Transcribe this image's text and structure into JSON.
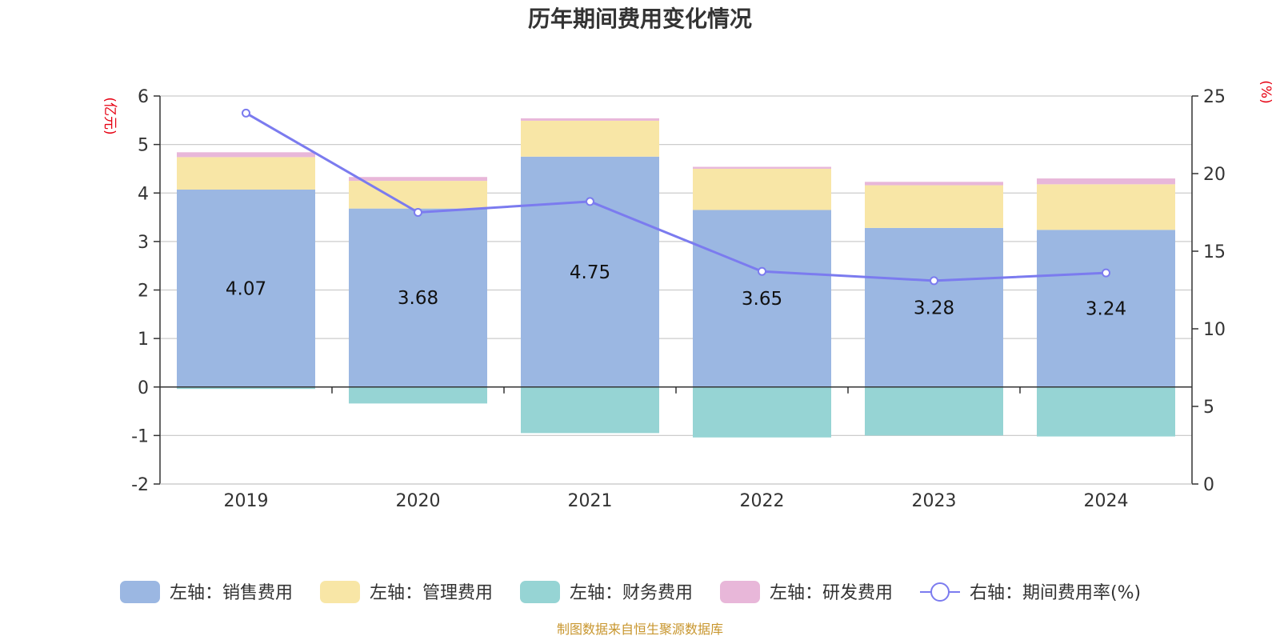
{
  "chart_data": {
    "type": "bar",
    "stacked": true,
    "title": "历年期间费用变化情况",
    "categories": [
      "2019",
      "2020",
      "2021",
      "2022",
      "2023",
      "2024"
    ],
    "left_axis": {
      "unit": "(亿元)",
      "ylim": [
        -2,
        6
      ],
      "ticks": [
        "6",
        "5",
        "4",
        "3",
        "2",
        "1",
        "0",
        "-1",
        "-2"
      ]
    },
    "right_axis": {
      "unit": "(%)",
      "ylim": [
        0,
        25
      ],
      "ticks": [
        "25",
        "20",
        "15",
        "10",
        "5",
        "0"
      ]
    },
    "series": [
      {
        "name": "左轴：销售费用",
        "axis": "left",
        "type": "bar",
        "color": "#9bb7e2",
        "values": [
          4.07,
          3.68,
          4.75,
          3.65,
          3.28,
          3.24
        ],
        "labels": [
          "4.07",
          "3.68",
          "4.75",
          "3.65",
          "3.28",
          "3.24"
        ]
      },
      {
        "name": "左轴：管理费用",
        "axis": "left",
        "type": "bar",
        "color": "#f8e6a6",
        "values": [
          0.67,
          0.57,
          0.74,
          0.85,
          0.88,
          0.94
        ]
      },
      {
        "name": "左轴：财务费用",
        "axis": "left",
        "type": "bar",
        "color": "#96d4d4",
        "values": [
          -0.04,
          -0.34,
          -0.95,
          -1.04,
          -1.0,
          -1.02
        ]
      },
      {
        "name": "左轴：研发费用",
        "axis": "left",
        "type": "bar",
        "color": "#e8b7d9",
        "values": [
          0.1,
          0.08,
          0.05,
          0.04,
          0.07,
          0.12
        ]
      },
      {
        "name": "右轴：期间费用率(%)",
        "axis": "right",
        "type": "line",
        "color": "#7b7bef",
        "values": [
          23.9,
          17.5,
          18.2,
          13.7,
          13.1,
          13.6
        ]
      }
    ]
  },
  "legend": [
    {
      "label": "左轴：销售费用",
      "kind": "bar",
      "color": "#9bb7e2"
    },
    {
      "label": "左轴：管理费用",
      "kind": "bar",
      "color": "#f8e6a6"
    },
    {
      "label": "左轴：财务费用",
      "kind": "bar",
      "color": "#96d4d4"
    },
    {
      "label": "左轴：研发费用",
      "kind": "bar",
      "color": "#e8b7d9"
    },
    {
      "label": "右轴：期间费用率(%)",
      "kind": "line",
      "color": "#7b7bef"
    }
  ],
  "source": "制图数据来自恒生聚源数据库"
}
